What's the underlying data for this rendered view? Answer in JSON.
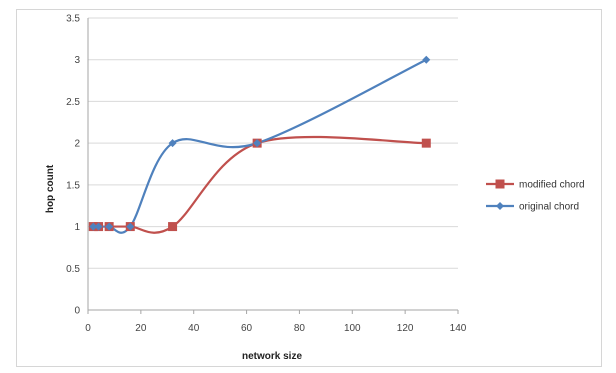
{
  "chart_data": {
    "type": "line",
    "title": "",
    "xlabel": "network size",
    "ylabel": "hop count",
    "xlim": [
      0,
      140
    ],
    "ylim": [
      0,
      3.5
    ],
    "xticks": [
      0,
      20,
      40,
      60,
      80,
      100,
      120,
      140
    ],
    "yticks": [
      0,
      0.5,
      1,
      1.5,
      2,
      2.5,
      3,
      3.5
    ],
    "grid": "horizontal",
    "smooth": true,
    "legend_position": "right",
    "series": [
      {
        "name": "modified chord",
        "color": "#c0504d",
        "marker": "square",
        "x": [
          2,
          4,
          8,
          16,
          32,
          64,
          128
        ],
        "y": [
          1,
          1,
          1,
          1,
          1,
          2,
          2
        ]
      },
      {
        "name": "original chord",
        "color": "#4f81bd",
        "marker": "diamond",
        "x": [
          2,
          4,
          8,
          16,
          32,
          64,
          128
        ],
        "y": [
          1,
          1,
          1,
          1,
          2,
          2,
          3
        ]
      }
    ]
  }
}
